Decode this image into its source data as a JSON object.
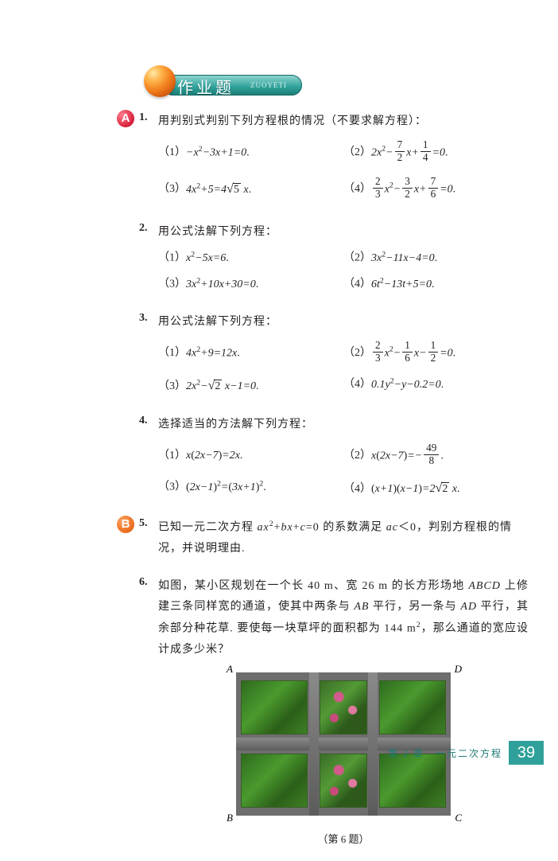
{
  "header": {
    "title": "作业题",
    "subtitle": "ZUOYETI"
  },
  "badges": {
    "A": "A",
    "B": "B"
  },
  "problems": [
    {
      "num": "1.",
      "stem": "用判别式判别下列方程根的情况（不要求解方程）：",
      "rows": [
        [
          {
            "pre": "（1）",
            "html": "−<span class='mi'>x</span><span class='sup'>2</span>−3<span class='mi'>x</span>+1=0<span class='punct'>.</span>"
          },
          {
            "pre": "（2）",
            "html": "2<span class='mi'>x</span><span class='sup'>2</span>−<span class='frac'><span class='n'>7</span><span class='d'>2</span></span><span class='mi'>x</span>+<span class='frac'><span class='n'>1</span><span class='d'>4</span></span>=0<span class='punct'>.</span>"
          }
        ],
        [
          {
            "pre": "（3）",
            "html": "4<span class='mi'>x</span><span class='sup'>2</span>+5=4<span class='sqrt'><span class='rad'>5</span></span>&nbsp;<span class='mi'>x</span><span class='punct'>.</span>"
          },
          {
            "pre": "（4）",
            "html": "<span class='frac'><span class='n'>2</span><span class='d'>3</span></span><span class='mi'>x</span><span class='sup'>2</span>−<span class='frac'><span class='n'>3</span><span class='d'>2</span></span><span class='mi'>x</span>+<span class='frac'><span class='n'>7</span><span class='d'>6</span></span>=0<span class='punct'>.</span>"
          }
        ]
      ],
      "tall": [
        false,
        true
      ]
    },
    {
      "num": "2.",
      "stem": "用公式法解下列方程：",
      "rows": [
        [
          {
            "pre": "（1）",
            "html": "<span class='mi'>x</span><span class='sup'>2</span>−5<span class='mi'>x</span>=6<span class='punct'>.</span>"
          },
          {
            "pre": "（2）",
            "html": "3<span class='mi'>x</span><span class='sup'>2</span>−11<span class='mi'>x</span>−4=0<span class='punct'>.</span>"
          }
        ],
        [
          {
            "pre": "（3）",
            "html": "3<span class='mi'>x</span><span class='sup'>2</span>+10<span class='mi'>x</span>+30=0<span class='punct'>.</span>"
          },
          {
            "pre": "（4）",
            "html": "6<span class='mi'>t</span><span class='sup'>2</span>−13<span class='mi'>t</span>+5=0<span class='punct'>.</span>"
          }
        ]
      ],
      "tall": [
        false,
        false
      ]
    },
    {
      "num": "3.",
      "stem": "用公式法解下列方程：",
      "rows": [
        [
          {
            "pre": "（1）",
            "html": "4<span class='mi'>x</span><span class='sup'>2</span>+9=12<span class='mi'>x</span><span class='punct'>.</span>"
          },
          {
            "pre": "（2）",
            "html": "<span class='frac'><span class='n'>2</span><span class='d'>3</span></span><span class='mi'>x</span><span class='sup'>2</span>−<span class='frac'><span class='n'>1</span><span class='d'>6</span></span><span class='mi'>x</span>−<span class='frac'><span class='n'>1</span><span class='d'>2</span></span>=0<span class='punct'>.</span>"
          }
        ],
        [
          {
            "pre": "（3）",
            "html": "2<span class='mi'>x</span><span class='sup'>2</span>−<span class='sqrt'><span class='rad'>2</span></span>&nbsp;<span class='mi'>x</span>−1=0<span class='punct'>.</span>"
          },
          {
            "pre": "（4）",
            "html": "0.1<span class='mi'>y</span><span class='sup'>2</span>−<span class='mi'>y</span>−0.2=0<span class='punct'>.</span>"
          }
        ]
      ],
      "tall": [
        true,
        false
      ]
    },
    {
      "num": "4.",
      "stem": "选择适当的方法解下列方程：",
      "rows": [
        [
          {
            "pre": "（1）",
            "html": "<span class='mi'>x</span><span class='punct'>(</span>2<span class='mi'>x</span>−7<span class='punct'>)</span>=2<span class='mi'>x</span><span class='punct'>.</span>"
          },
          {
            "pre": "（2）",
            "html": "<span class='mi'>x</span><span class='punct'>(</span>2<span class='mi'>x</span>−7<span class='punct'>)</span>=−<span class='frac'><span class='n'>49</span><span class='d'>8</span></span><span class='punct'>.</span>"
          }
        ],
        [
          {
            "pre": "（3）",
            "html": "<span class='punct'>(</span>2<span class='mi'>x</span>−1<span class='punct'>)</span><span class='sup'>2</span>=<span class='punct'>(</span>3<span class='mi'>x</span>+1<span class='punct'>)</span><span class='sup'>2</span><span class='punct'>.</span>"
          },
          {
            "pre": "（4）",
            "html": "<span class='punct'>(</span><span class='mi'>x</span>+1<span class='punct'>)(</span><span class='mi'>x</span>−1<span class='punct'>)</span>=2<span class='sqrt'><span class='rad'>2</span></span>&nbsp;<span class='mi'>x</span><span class='punct'>.</span>"
          }
        ]
      ],
      "tall": [
        true,
        false
      ]
    },
    {
      "num": "5.",
      "stem_html": "已知一元二次方程 <span class='mi'>ax</span><span class='sup'>2</span>+<span class='mi'>bx</span>+<span class='mi'>c</span>=0 的系数满足 <span class='mi'>ac</span>＜0，判别方程根的情况，并说明理由.",
      "badge": "B"
    },
    {
      "num": "6.",
      "stem_html": "如图，某小区规划在一个长 40 m、宽 26 m 的长方形场地 <span class='mi'>ABCD</span> 上修建三条同样宽的通道，使其中两条与 <span class='mi'>AB</span> 平行，另一条与 <span class='mi'>AD</span> 平行，其余部分种花草. 要使每一块草坪的面积都为 144 m<span class='sup'>2</span>，那么通道的宽应设计成多少米？"
    }
  ],
  "figure": {
    "labels": {
      "A": "A",
      "B": "B",
      "C": "C",
      "D": "D"
    },
    "caption": "（第 6 题）"
  },
  "footer": {
    "chapter": "第 2 章　一元二次方程",
    "page": "39"
  },
  "colors": {
    "teal": "#2fa19a",
    "page_bg": "#ffffff",
    "text": "#231f20"
  }
}
